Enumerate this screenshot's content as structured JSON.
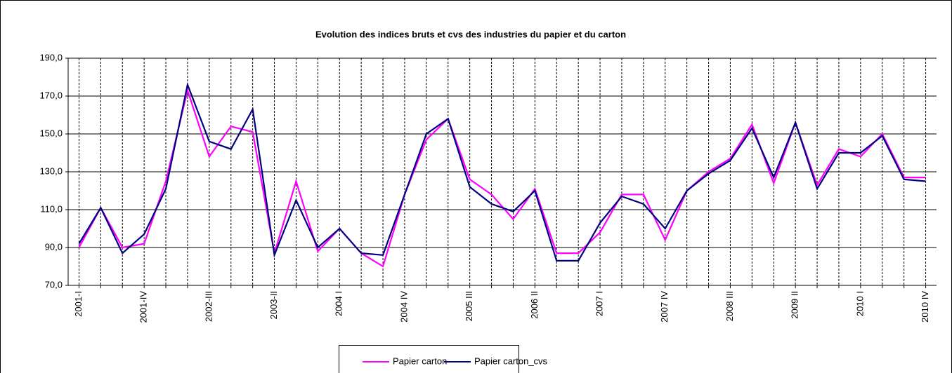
{
  "chart_data": {
    "type": "line",
    "title": "Evolution des indices bruts et cvs des industries du papier et du carton",
    "categories": [
      "2001-I",
      null,
      null,
      "2001-IV",
      null,
      null,
      "2002-III",
      null,
      null,
      "2003-II",
      null,
      null,
      "2004 I",
      null,
      null,
      "2004 IV",
      null,
      null,
      "2005 III",
      null,
      null,
      "2006 II",
      null,
      null,
      "2007 I",
      null,
      null,
      "2007 IV",
      null,
      null,
      "2008 III",
      null,
      null,
      "2009 II",
      null,
      null,
      "2010 I",
      null,
      null,
      "2010 IV"
    ],
    "series": [
      {
        "name": "Papier carton",
        "color": "#ff00ff",
        "values": [
          90,
          111,
          90,
          92,
          125,
          173,
          138,
          154,
          151,
          87,
          125,
          88,
          100,
          87,
          80,
          118,
          147,
          158,
          126,
          118,
          105,
          121,
          87,
          87,
          98,
          118,
          118,
          94,
          120,
          130,
          137,
          155,
          124,
          156,
          123,
          142,
          138,
          150,
          127,
          127
        ]
      },
      {
        "name": "Papier carton_cvs",
        "color": "#000080",
        "values": [
          92,
          111,
          87,
          97,
          121,
          176,
          146,
          142,
          163,
          86,
          115,
          90,
          100,
          87,
          86,
          118,
          150,
          158,
          122,
          113,
          109,
          120,
          83,
          83,
          103,
          117,
          113,
          100,
          120,
          129,
          136,
          153,
          127,
          156,
          121,
          140,
          140,
          149,
          126,
          125
        ]
      }
    ],
    "ylim": [
      70,
      190
    ],
    "yticks": [
      {
        "value": 70,
        "label": "70,0"
      },
      {
        "value": 90,
        "label": "90,0"
      },
      {
        "value": 110,
        "label": "110,0"
      },
      {
        "value": 130,
        "label": "130,0"
      },
      {
        "value": 150,
        "label": "150,0"
      },
      {
        "value": 170,
        "label": "170,0"
      },
      {
        "value": 190,
        "label": "190,0"
      }
    ],
    "grid": true,
    "legend": "bottom"
  }
}
